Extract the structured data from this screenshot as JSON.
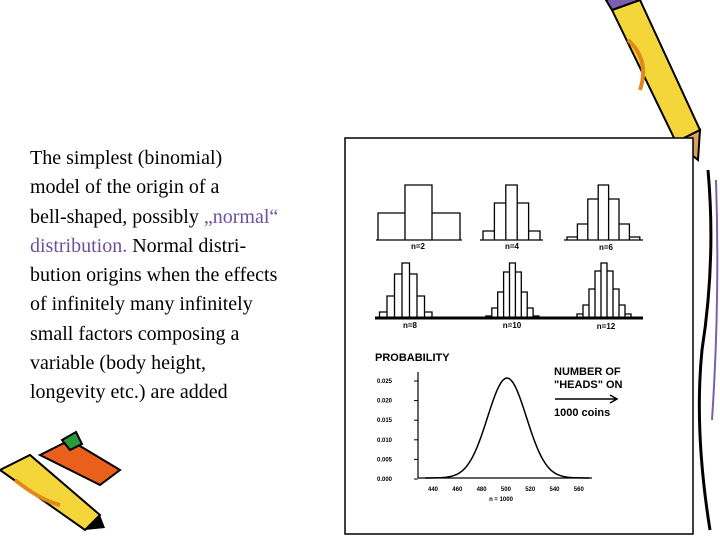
{
  "slide": {
    "paragraph": [
      [
        {
          "text": "The simplest (binomial)"
        }
      ],
      [
        {
          "text": "model of the origin of a"
        }
      ],
      [
        {
          "text": "bell-shaped, possibly "
        },
        {
          "text": "„normal“",
          "color": "#6f4f9f"
        }
      ],
      [
        {
          "text": "distribution.",
          "color": "#6f4f9f"
        },
        {
          "text": " Normal distri-"
        }
      ],
      [
        {
          "text": "bution origins when the effects"
        }
      ],
      [
        {
          "text": "of infinitely many infinitely"
        }
      ],
      [
        {
          "text": "small factors composing a"
        }
      ],
      [
        {
          "text": "variable (body height,"
        }
      ],
      [
        {
          "text": "longevity etc.) are added"
        }
      ]
    ],
    "figure": {
      "histogram_labels": [
        "n=2",
        "n=4",
        "n=6",
        "n=8",
        "n=10",
        "n=12"
      ],
      "y_axis_title": "PROBABILITY",
      "legend_lines": [
        "NUMBER OF",
        "\"HEADS\" ON",
        "1000 coins"
      ],
      "yticks": [
        "0.025",
        "0.020",
        "0.015",
        "0.010",
        "0.005",
        "0.000"
      ],
      "xticks": [
        "440",
        "460",
        "480",
        "500",
        "520",
        "540",
        "560"
      ],
      "x_axis_label": "n = 1000"
    }
  }
}
